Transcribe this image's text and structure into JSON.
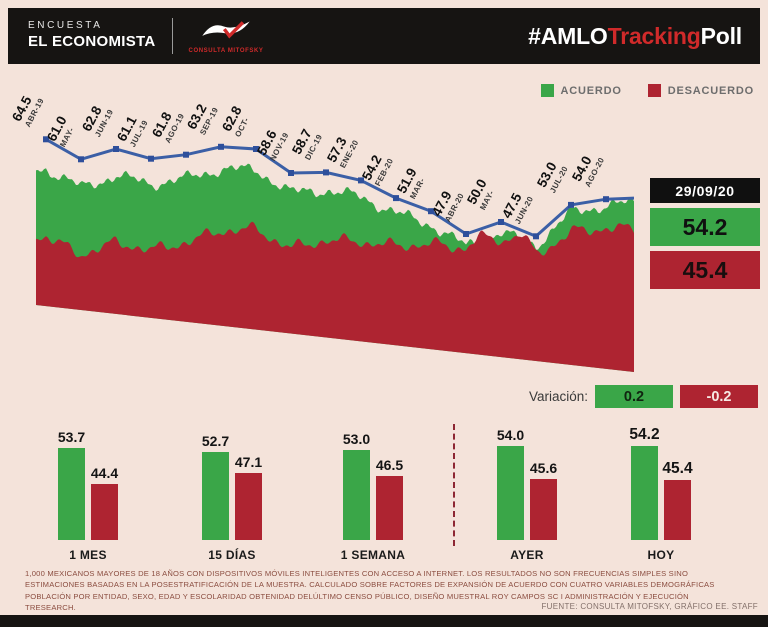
{
  "header": {
    "brand_top": "ENCUESTA",
    "brand_bottom": "EL ECONOMISTA",
    "logo_name": "CONSULTA MITOFSKY",
    "hashtag_prefix": "#AMLO",
    "hashtag_mid": "Tracking",
    "hashtag_suffix": "Poll"
  },
  "legend": {
    "agree": "ACUERDO",
    "disagree": "DESACUERDO"
  },
  "current": {
    "date": "29/09/20",
    "agree": "54.2",
    "disagree": "45.4"
  },
  "variation": {
    "label": "Variación:",
    "agree": "0.2",
    "disagree": "-0.2"
  },
  "colors": {
    "green": "#3aa648",
    "red": "#ae2431",
    "blue": "#3b5fa6",
    "marker_blue": "#2e4f9b",
    "background": "#f4e3da",
    "black": "#161412",
    "accent_red": "#d02a2a"
  },
  "chart_data": [
    {
      "type": "area",
      "title": "#AMLOTrackingPoll",
      "categories": [
        "ABR-19",
        "MAY-",
        "JUN-19",
        "JUL-19",
        "AGO-19",
        "SEP-19",
        "OCT-",
        "NOV-19",
        "DIC-19",
        "ENE-20",
        "FEB-20",
        "MAR-",
        "ABR-20",
        "MAY-",
        "JUN-20",
        "JUL-20",
        "AGO-20"
      ],
      "series": [
        {
          "name": "ACUERDO",
          "color": "#3aa648",
          "values": [
            64.5,
            61.0,
            62.8,
            61.1,
            61.8,
            63.2,
            62.8,
            58.6,
            58.7,
            57.3,
            54.2,
            51.9,
            47.9,
            50.0,
            47.5,
            53.0,
            54.0
          ]
        }
      ],
      "overlay_line": {
        "name": "ACUERDO",
        "color": "#3b5fa6"
      },
      "current": {
        "date": "29/09/20",
        "acuerdo": 54.2,
        "desacuerdo": 45.4
      },
      "legend_position": "top-right",
      "ylim": [
        30,
        70
      ]
    },
    {
      "type": "bar",
      "categories": [
        "1 MES",
        "15 DÍAS",
        "1 SEMANA",
        "AYER",
        "HOY"
      ],
      "series": [
        {
          "name": "ACUERDO",
          "color": "#3aa648",
          "values": [
            53.7,
            52.7,
            53.0,
            54.0,
            54.2
          ]
        },
        {
          "name": "DESACUERDO",
          "color": "#ae2431",
          "values": [
            44.4,
            47.1,
            46.5,
            45.6,
            45.4
          ]
        }
      ],
      "variation": {
        "acuerdo": 0.2,
        "desacuerdo": -0.2
      }
    }
  ],
  "footnote": "1,000 MEXICANOS MAYORES DE 18 AÑOS CON DISPOSITIVOS MÓVILES INTELIGENTES CON ACCESO A INTERNET. LOS RESULTADOS NO SON FRECUENCIAS SIMPLES SINO ESTIMACIONES BASADAS EN LA POSESTRATIFICACIÓN DE LA MUESTRA. CALCULADO SOBRE FACTORES DE EXPANSIÓN DE ACUERDO CON CUATRO VARIABLES DEMOGRÁFICAS POBLACIÓN POR ENTIDAD, SEXO, EDAD Y ESCOLARIDAD OBTENIDAD DELÚLTIMO CENSO PÚBLICO, DISEÑO MUESTRAL ROY CAMPOS SC I ADMINISTRACIÓN Y EJECUCIÓN TRESEARCH.",
  "source": "FUENTE: CONSULTA MITOFSKY, GRÁFICO EE. STAFF"
}
